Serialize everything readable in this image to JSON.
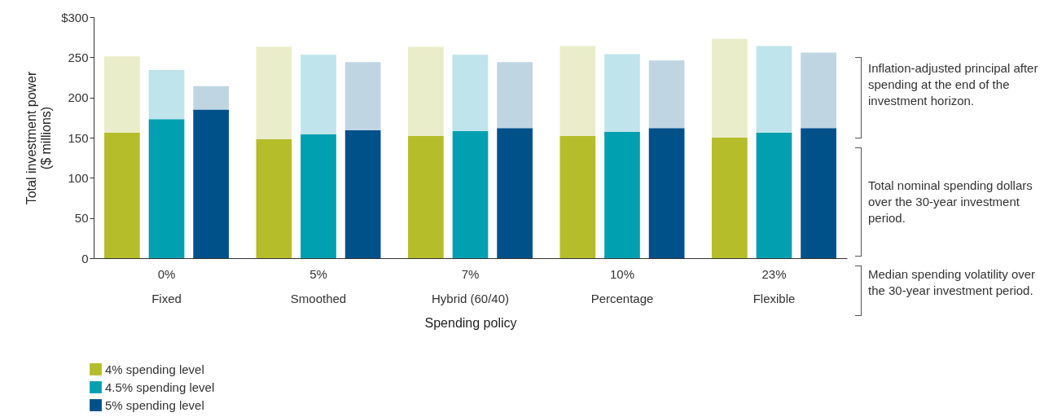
{
  "chart_data": {
    "type": "bar",
    "stacked": true,
    "xlabel": "Spending policy",
    "ylabel": "Total investment power\n($ millions)",
    "categories": [
      null,
      "0%\nFixed",
      null,
      null,
      "5%\nSmoothed",
      null,
      null,
      "7%\nHybrid (60/40)",
      null,
      null,
      "10%\nPercentage",
      null,
      null,
      "23%\nFlexible",
      null
    ],
    "ylim": [
      0,
      300
    ],
    "yticks": [
      0,
      50,
      100,
      150,
      200,
      250,
      {
        "value": 300,
        "label": "$300"
      }
    ],
    "grid": false,
    "legend": "bottom left",
    "series": [
      {
        "name": "4% spending level",
        "color": "#b5bd2a",
        "values": [
          156,
          null,
          null,
          148,
          null,
          null,
          152,
          null,
          null,
          152,
          null,
          null,
          150,
          null,
          null
        ]
      },
      {
        "name": "4.5% spending level",
        "color": "#00a0b0",
        "values": [
          null,
          173,
          null,
          null,
          154,
          null,
          null,
          158,
          null,
          null,
          157,
          null,
          null,
          156,
          null
        ]
      },
      {
        "name": "5% spending level",
        "color": "#00508a",
        "values": [
          null,
          null,
          185,
          null,
          null,
          159,
          null,
          null,
          162,
          null,
          null,
          162,
          null,
          null,
          162
        ]
      },
      {
        "color": "#eaedc9",
        "values": [
          95,
          null,
          null,
          115,
          null,
          null,
          111,
          null,
          null,
          112,
          null,
          null,
          123,
          null,
          null
        ]
      },
      {
        "color": "#bfe4eb",
        "values": [
          null,
          61,
          null,
          null,
          99,
          null,
          null,
          95,
          null,
          null,
          97,
          null,
          null,
          108,
          null
        ]
      },
      {
        "color": "#bfd5e2",
        "values": [
          null,
          null,
          29,
          null,
          null,
          85,
          null,
          null,
          82,
          null,
          null,
          84,
          null,
          null,
          94
        ]
      }
    ],
    "annotations": [
      "Inflation-adjusted principal after spending at the end of the investment horizon.",
      "Total nominal spending dollars over the 30-year investment period.",
      "Median spending volatility over the 30-year investment period."
    ]
  }
}
